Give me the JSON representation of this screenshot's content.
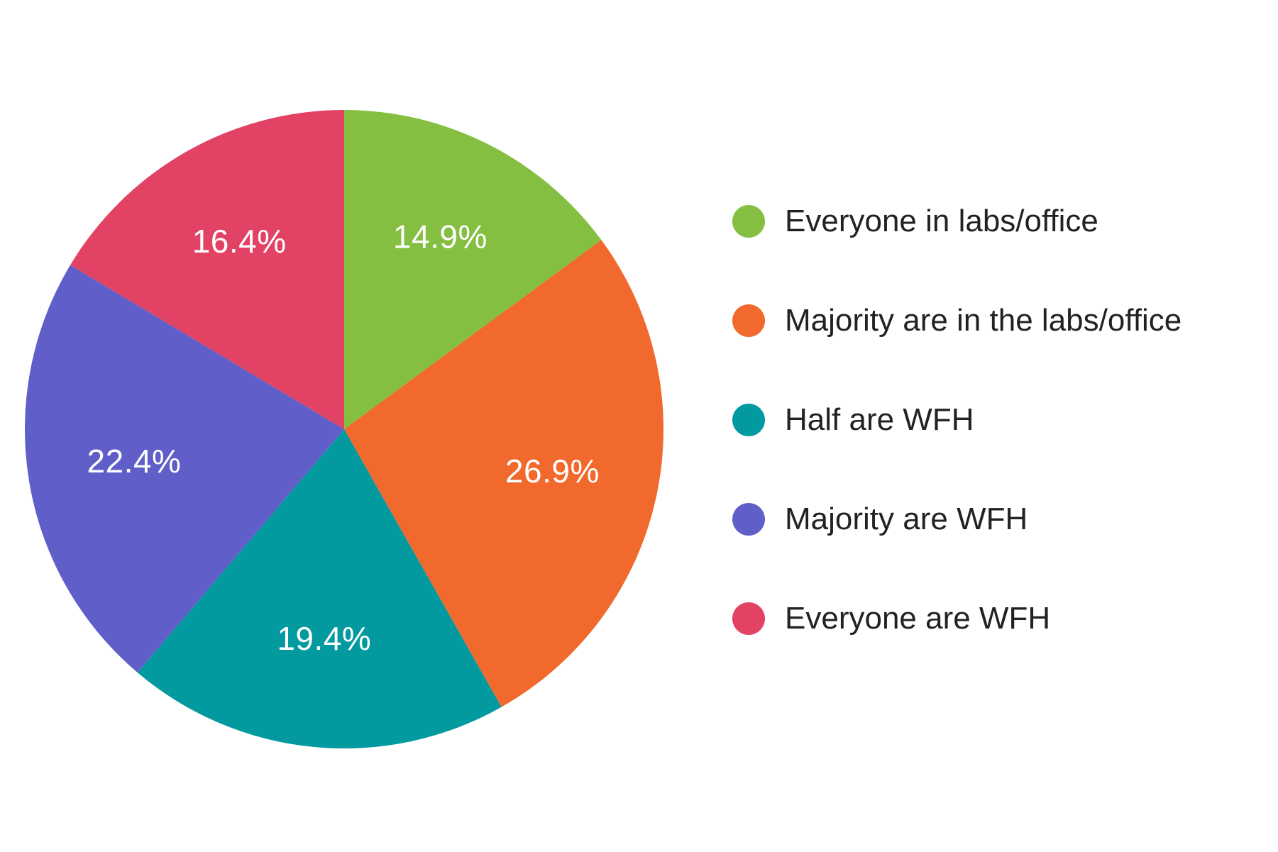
{
  "chart_data": {
    "type": "pie",
    "title": "",
    "categories": [
      "Everyone in labs/office",
      "Majority are in the labs/office",
      "Half are WFH",
      "Majority are WFH",
      "Everyone are WFH"
    ],
    "values": [
      14.9,
      26.9,
      19.4,
      22.4,
      16.4
    ],
    "value_labels": [
      "14.9%",
      "26.9%",
      "19.4%",
      "22.4%",
      "16.4%"
    ],
    "colors": [
      "#84bf41",
      "#f1692c",
      "#02999f",
      "#605ec8",
      "#e24263"
    ],
    "start_angle": "12 o'clock",
    "direction": "clockwise",
    "legend_position": "right"
  }
}
